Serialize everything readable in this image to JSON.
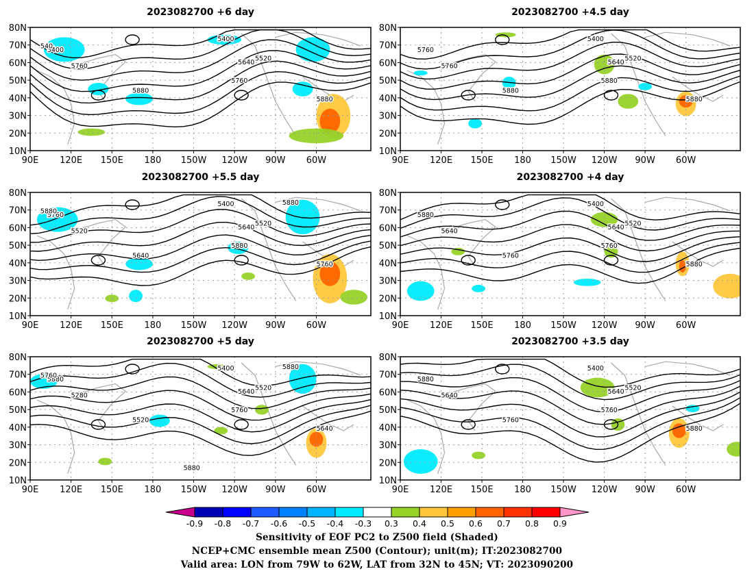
{
  "panels": [
    {
      "title": "2023082700  +6 day",
      "contour_labels": [
        "5400",
        "5520",
        "5640",
        "5760",
        "5880",
        "5880",
        "5760",
        "5400",
        "540"
      ]
    },
    {
      "title": "2023082700  +4.5 day",
      "contour_labels": [
        "5400",
        "5520",
        "5640",
        "5760",
        "5880",
        "5880",
        "5880",
        "5760"
      ]
    },
    {
      "title": "2023082700  +5.5 day",
      "contour_labels": [
        "5400",
        "5520",
        "5640",
        "5520",
        "5640",
        "5760",
        "5880",
        "5760",
        "5880",
        "5880"
      ]
    },
    {
      "title": "2023082700  +4 day",
      "contour_labels": [
        "5400",
        "5520",
        "5640",
        "5640",
        "5760",
        "5880",
        "5760",
        "5880"
      ]
    },
    {
      "title": "2023082700  +5 day",
      "contour_labels": [
        "5400",
        "5520",
        "5640",
        "5280",
        "5520",
        "5640",
        "5760",
        "5880",
        "5760",
        "5880",
        "5880"
      ]
    },
    {
      "title": "2023082700  +3.5 day",
      "contour_labels": [
        "5400",
        "5520",
        "5640",
        "5640",
        "5760",
        "5880",
        "5760",
        "5880"
      ]
    }
  ],
  "axes": {
    "lat_labels": [
      "80N",
      "70N",
      "60N",
      "50N",
      "40N",
      "30N",
      "20N",
      "10N"
    ],
    "lon_labels": [
      "90E",
      "120E",
      "150E",
      "180",
      "150W",
      "120W",
      "90W",
      "60W"
    ]
  },
  "colorbar": {
    "tick_labels": [
      "-0.9",
      "-0.8",
      "-0.7",
      "-0.6",
      "-0.5",
      "-0.4",
      "-0.3",
      "0.3",
      "0.4",
      "0.5",
      "0.6",
      "0.7",
      "0.8",
      "0.9"
    ],
    "colors": [
      "#c8008c",
      "#0000b4",
      "#0000ff",
      "#1e5aff",
      "#0082ff",
      "#00b4ff",
      "#00ebff",
      "#ffffff",
      "#96d228",
      "#ffc83c",
      "#ffa000",
      "#ff6400",
      "#ff3200",
      "#ff0000",
      "#ff96c8"
    ]
  },
  "captions": {
    "line1": "Sensitivity of EOF PC2 to Z500 field (Shaded)",
    "line2": "NCEP+CMC ensemble mean Z500 (Contour); unit(m); IT:2023082700",
    "line3": "Valid area: LON from 79W to 62W, LAT from 32N to 45N; VT: 2023090200"
  }
}
